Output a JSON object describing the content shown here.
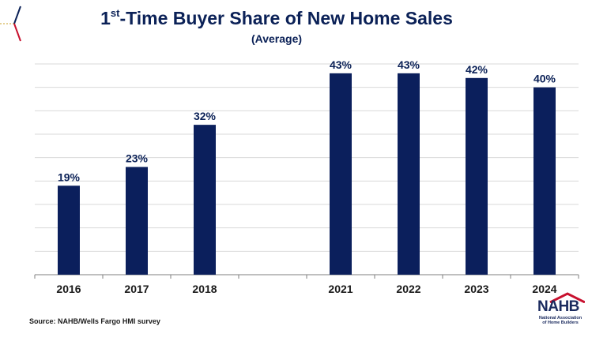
{
  "title": {
    "main": "-Time Buyer Share of New Home Sales",
    "prefix": "1",
    "sup": "st",
    "subtitle": "(Average)"
  },
  "source": "Source: NAHB/Wells Fargo HMI survey",
  "logo": {
    "word": "NAHB",
    "line1": "National Association",
    "line2": "of Home Builders",
    "accent": "#c8102e"
  },
  "colors": {
    "bar": "#0b1f5c",
    "text": "#0b2157",
    "grid": "#d9d9d9",
    "axis": "#7f7f7f"
  },
  "chart_data": {
    "type": "bar",
    "categories": [
      "2016",
      "2017",
      "2018",
      "",
      "2021",
      "2022",
      "2023",
      "2024"
    ],
    "values": [
      19,
      23,
      32,
      null,
      43,
      43,
      42,
      40
    ],
    "labels": [
      "19%",
      "23%",
      "32%",
      "",
      "43%",
      "43%",
      "42%",
      "40%"
    ],
    "ylim": [
      0,
      45
    ],
    "grid": true,
    "title": "1st-Time Buyer Share of New Home Sales",
    "subtitle": "(Average)"
  }
}
